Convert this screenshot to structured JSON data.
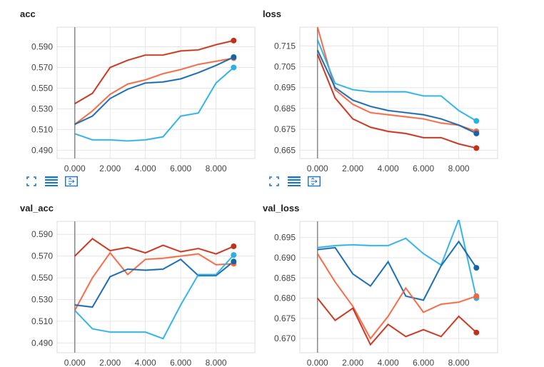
{
  "colors": {
    "dark_red": "#c13019",
    "orange": "#f2663f",
    "dark_blue": "#1365a8",
    "light_blue": "#2cafe2",
    "icon_blue": "#1976d2"
  },
  "toolbar": {
    "icons": [
      "fit-screen-icon",
      "data-table-icon",
      "zoom-to-fit-icon"
    ]
  },
  "chart_data": [
    {
      "type": "line",
      "title": "acc",
      "x": [
        0,
        1,
        2,
        3,
        4,
        5,
        6,
        7,
        8,
        9
      ],
      "xticks": [
        "0.000",
        "2.000",
        "4.000",
        "6.000",
        "8.000"
      ],
      "xtick_values": [
        0,
        2,
        4,
        6,
        8
      ],
      "yticks": [
        "0.590",
        "0.570",
        "0.550",
        "0.530",
        "0.510",
        "0.490"
      ],
      "ytick_values": [
        0.59,
        0.57,
        0.55,
        0.53,
        0.51,
        0.49
      ],
      "xlim": [
        -1.0,
        10.2
      ],
      "ylim": [
        0.482,
        0.609
      ],
      "grid": true,
      "series": [
        {
          "color": "#c13019",
          "values": [
            0.535,
            0.545,
            0.57,
            0.577,
            0.582,
            0.582,
            0.586,
            0.587,
            0.592,
            0.596
          ]
        },
        {
          "color": "#f2663f",
          "values": [
            0.515,
            0.528,
            0.544,
            0.554,
            0.558,
            0.564,
            0.568,
            0.573,
            0.576,
            0.579
          ]
        },
        {
          "color": "#1365a8",
          "values": [
            0.515,
            0.523,
            0.54,
            0.549,
            0.555,
            0.556,
            0.559,
            0.565,
            0.572,
            0.58
          ]
        },
        {
          "color": "#2cafe2",
          "values": [
            0.506,
            0.5,
            0.5,
            0.499,
            0.5,
            0.503,
            0.523,
            0.526,
            0.555,
            0.57
          ]
        }
      ]
    },
    {
      "type": "line",
      "title": "loss",
      "x": [
        0,
        1,
        2,
        3,
        4,
        5,
        6,
        7,
        8,
        9
      ],
      "xticks": [
        "0.000",
        "2.000",
        "4.000",
        "6.000",
        "8.000"
      ],
      "xtick_values": [
        0,
        2,
        4,
        6,
        8
      ],
      "yticks": [
        "0.715",
        "0.705",
        "0.695",
        "0.685",
        "0.675",
        "0.665"
      ],
      "ytick_values": [
        0.715,
        0.705,
        0.695,
        0.685,
        0.675,
        0.665
      ],
      "xlim": [
        -1.0,
        10.2
      ],
      "ylim": [
        0.661,
        0.724
      ],
      "grid": true,
      "series": [
        {
          "color": "#f2663f",
          "values": [
            0.724,
            0.694,
            0.687,
            0.683,
            0.682,
            0.681,
            0.68,
            0.678,
            0.677,
            0.674
          ]
        },
        {
          "color": "#c13019",
          "values": [
            0.711,
            0.69,
            0.68,
            0.676,
            0.674,
            0.673,
            0.671,
            0.671,
            0.668,
            0.666
          ]
        },
        {
          "color": "#1365a8",
          "values": [
            0.713,
            0.695,
            0.689,
            0.686,
            0.684,
            0.683,
            0.682,
            0.68,
            0.677,
            0.673
          ]
        },
        {
          "color": "#2cafe2",
          "values": [
            0.718,
            0.697,
            0.694,
            0.693,
            0.693,
            0.693,
            0.691,
            0.691,
            0.684,
            0.679
          ]
        }
      ]
    },
    {
      "type": "line",
      "title": "val_acc",
      "x": [
        0,
        1,
        2,
        3,
        4,
        5,
        6,
        7,
        8,
        9
      ],
      "xticks": [
        "0.000",
        "2.000",
        "4.000",
        "6.000",
        "8.000"
      ],
      "xtick_values": [
        0,
        2,
        4,
        6,
        8
      ],
      "yticks": [
        "0.590",
        "0.570",
        "0.550",
        "0.530",
        "0.510",
        "0.490"
      ],
      "ytick_values": [
        0.59,
        0.57,
        0.55,
        0.53,
        0.51,
        0.49
      ],
      "xlim": [
        -1.0,
        10.2
      ],
      "ylim": [
        0.481,
        0.602
      ],
      "grid": true,
      "series": [
        {
          "color": "#c13019",
          "values": [
            0.57,
            0.586,
            0.575,
            0.578,
            0.573,
            0.58,
            0.574,
            0.577,
            0.572,
            0.579
          ]
        },
        {
          "color": "#f2663f",
          "values": [
            0.52,
            0.55,
            0.573,
            0.553,
            0.567,
            0.568,
            0.57,
            0.572,
            0.562,
            0.563
          ]
        },
        {
          "color": "#1365a8",
          "values": [
            0.525,
            0.523,
            0.551,
            0.558,
            0.557,
            0.558,
            0.567,
            0.552,
            0.552,
            0.565
          ]
        },
        {
          "color": "#2cafe2",
          "values": [
            0.52,
            0.503,
            0.5,
            0.5,
            0.5,
            0.494,
            0.525,
            0.553,
            0.553,
            0.571
          ]
        }
      ]
    },
    {
      "type": "line",
      "title": "val_loss",
      "x": [
        0,
        1,
        2,
        3,
        4,
        5,
        6,
        7,
        8,
        9
      ],
      "xticks": [
        "0.000",
        "2.000",
        "4.000",
        "6.000",
        "8.000"
      ],
      "xtick_values": [
        0,
        2,
        4,
        6,
        8
      ],
      "yticks": [
        "0.695",
        "0.690",
        "0.685",
        "0.680",
        "0.675",
        "0.670"
      ],
      "ytick_values": [
        0.695,
        0.69,
        0.685,
        0.68,
        0.675,
        0.67
      ],
      "xlim": [
        -1.0,
        10.2
      ],
      "ylim": [
        0.6665,
        0.699
      ],
      "grid": true,
      "series": [
        {
          "color": "#2cafe2",
          "values": [
            0.6925,
            0.693,
            0.6932,
            0.693,
            0.693,
            0.6948,
            0.691,
            0.6882,
            0.6995,
            0.68
          ]
        },
        {
          "color": "#1365a8",
          "values": [
            0.692,
            0.6925,
            0.686,
            0.683,
            0.689,
            0.6805,
            0.6795,
            0.688,
            0.694,
            0.6875
          ]
        },
        {
          "color": "#f2663f",
          "values": [
            0.691,
            0.684,
            0.678,
            0.67,
            0.6755,
            0.6825,
            0.6765,
            0.6785,
            0.679,
            0.6805
          ]
        },
        {
          "color": "#c13019",
          "values": [
            0.68,
            0.6745,
            0.6775,
            0.6685,
            0.6735,
            0.6705,
            0.6722,
            0.6705,
            0.6755,
            0.6715
          ]
        }
      ]
    }
  ]
}
